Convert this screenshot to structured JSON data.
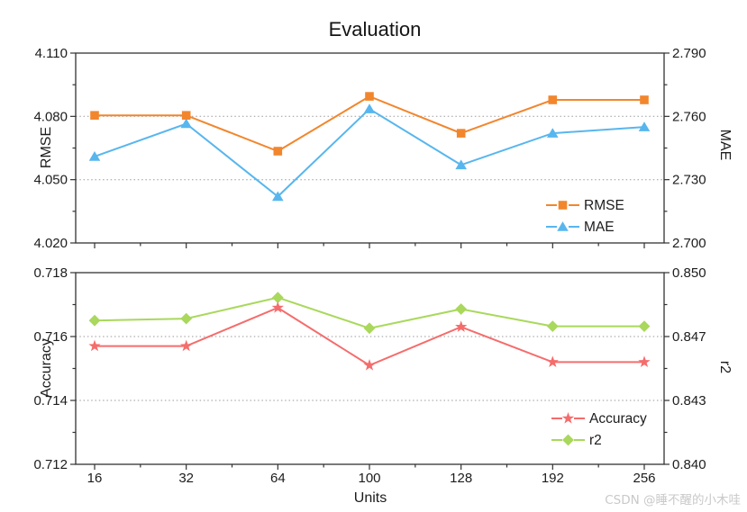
{
  "title": "Evaluation",
  "xlabel": "Units",
  "watermark": "CSDN @睡不醒的小木哇",
  "colors": {
    "rmse": "#F2862D",
    "mae": "#58B6EE",
    "accuracy": "#F56C6C",
    "r2": "#A9D85C",
    "grid": "#9a9a9a",
    "axis": "#323232",
    "watermark": "#c9c9c9"
  },
  "chart_data": [
    {
      "type": "line",
      "panel": "top",
      "categories": [
        "16",
        "32",
        "64",
        "100",
        "128",
        "192",
        "256"
      ],
      "left_axis": {
        "label": "RMSE",
        "min": 4.02,
        "max": 4.11,
        "ticks": [
          "4.020",
          "4.050",
          "4.080",
          "4.110"
        ]
      },
      "right_axis": {
        "label": "MAE",
        "min": 2.7,
        "max": 2.79,
        "ticks": [
          "2.700",
          "2.730",
          "2.760",
          "2.790"
        ]
      },
      "grid": "dotted-horizontal",
      "legend_position": "lower-right-inside",
      "series": [
        {
          "name": "RMSE",
          "axis": "left",
          "color": "#F2862D",
          "marker": "square",
          "values": [
            4.0805,
            4.0805,
            4.0635,
            4.0895,
            4.072,
            4.0878,
            4.0878
          ]
        },
        {
          "name": "MAE",
          "axis": "right",
          "color": "#58B6EE",
          "marker": "triangle",
          "values": [
            2.741,
            2.7565,
            2.722,
            2.7635,
            2.737,
            2.752,
            2.755
          ]
        }
      ]
    },
    {
      "type": "line",
      "panel": "bottom",
      "categories": [
        "16",
        "32",
        "64",
        "100",
        "128",
        "192",
        "256"
      ],
      "left_axis": {
        "label": "Accuracy",
        "min": 0.712,
        "max": 0.718,
        "ticks": [
          "0.712",
          "0.714",
          "0.716",
          "0.718"
        ]
      },
      "right_axis": {
        "label": "r2",
        "min": 0.84,
        "max": 0.85,
        "ticks": [
          "0.840",
          "0.843",
          "0.847",
          "0.850"
        ]
      },
      "grid": "dotted-horizontal",
      "legend_position": "lower-right-inside",
      "series": [
        {
          "name": "Accuracy",
          "axis": "left",
          "color": "#F56C6C",
          "marker": "star",
          "values": [
            0.7157,
            0.7157,
            0.7169,
            0.7151,
            0.7163,
            0.7152,
            0.7152
          ]
        },
        {
          "name": "r2",
          "axis": "right",
          "color": "#A9D85C",
          "marker": "diamond",
          "values": [
            0.8475,
            0.8476,
            0.8487,
            0.8471,
            0.8481,
            0.8472,
            0.8472
          ]
        }
      ]
    }
  ]
}
